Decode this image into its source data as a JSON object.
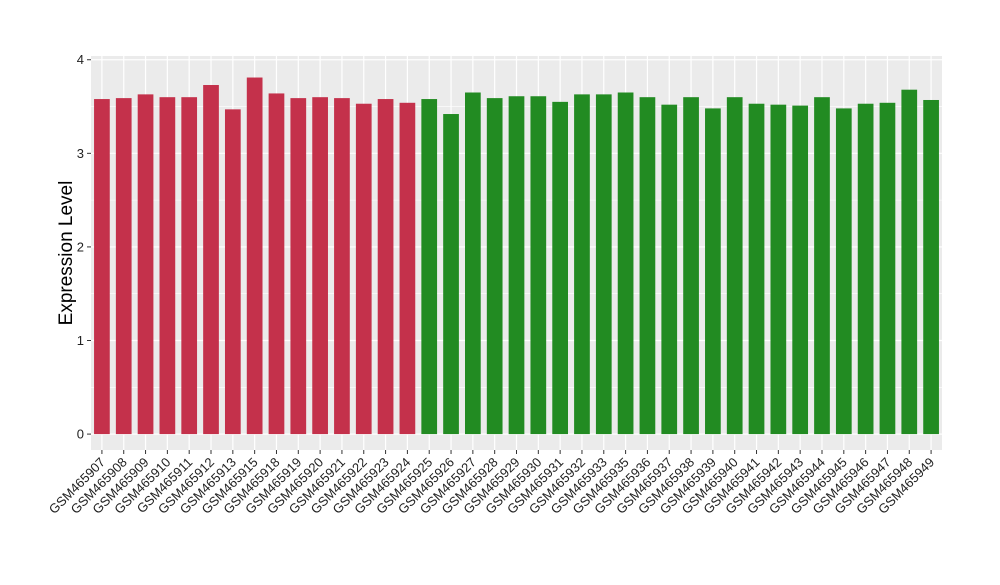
{
  "chart_data": {
    "type": "bar",
    "title": "",
    "xlabel": "",
    "ylabel": "Expression Level",
    "ylim": [
      -0.17,
      4.04
    ],
    "yticks": [
      0,
      1,
      2,
      3,
      4
    ],
    "grid": true,
    "legend": "none",
    "background": "#EBEBEB",
    "gridline_color": "#FFFFFF",
    "colors": {
      "group_1": "#C4314B",
      "group_2": "#228B22"
    },
    "categories": [
      "GSM465907",
      "GSM465908",
      "GSM465909",
      "GSM465910",
      "GSM465911",
      "GSM465912",
      "GSM465913",
      "GSM465915",
      "GSM465918",
      "GSM465919",
      "GSM465920",
      "GSM465921",
      "GSM465922",
      "GSM465923",
      "GSM465924",
      "GSM465925",
      "GSM465926",
      "GSM465927",
      "GSM465928",
      "GSM465929",
      "GSM465930",
      "GSM465931",
      "GSM465932",
      "GSM465933",
      "GSM465935",
      "GSM465936",
      "GSM465937",
      "GSM465938",
      "GSM465939",
      "GSM465940",
      "GSM465941",
      "GSM465942",
      "GSM465943",
      "GSM465944",
      "GSM465945",
      "GSM465946",
      "GSM465947",
      "GSM465948",
      "GSM465949"
    ],
    "values": [
      3.58,
      3.59,
      3.63,
      3.6,
      3.6,
      3.73,
      3.47,
      3.81,
      3.64,
      3.59,
      3.6,
      3.59,
      3.53,
      3.58,
      3.54,
      3.58,
      3.42,
      3.65,
      3.59,
      3.61,
      3.61,
      3.55,
      3.63,
      3.63,
      3.65,
      3.6,
      3.52,
      3.6,
      3.48,
      3.6,
      3.53,
      3.52,
      3.51,
      3.6,
      3.48,
      3.53,
      3.54,
      3.68,
      3.57
    ],
    "groups": [
      1,
      1,
      1,
      1,
      1,
      1,
      1,
      1,
      1,
      1,
      1,
      1,
      1,
      1,
      1,
      2,
      2,
      2,
      2,
      2,
      2,
      2,
      2,
      2,
      2,
      2,
      2,
      2,
      2,
      2,
      2,
      2,
      2,
      2,
      2,
      2,
      2,
      2,
      2
    ]
  }
}
